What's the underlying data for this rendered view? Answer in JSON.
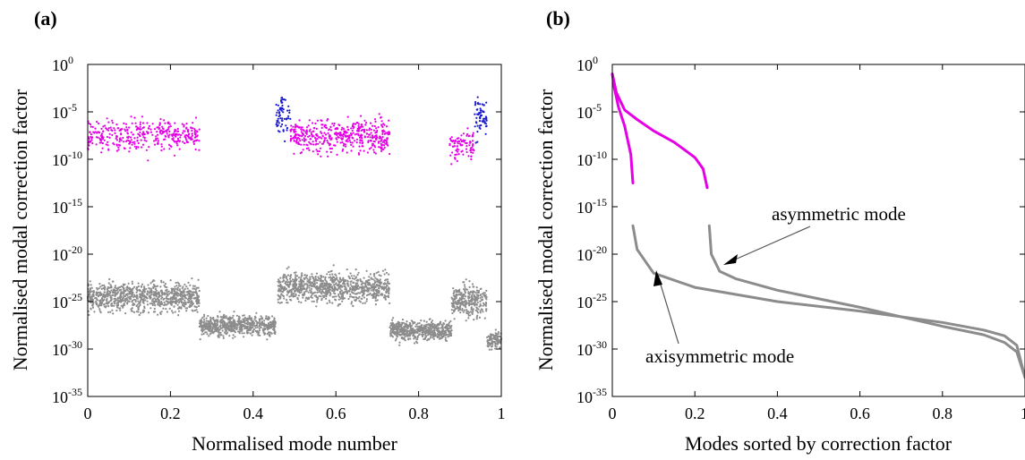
{
  "chart_data": [
    {
      "type": "scatter",
      "panel_label": "(a)",
      "xlabel": "Normalised mode number",
      "ylabel": "Normalised modal correction factor",
      "xlim": [
        0,
        1
      ],
      "ylim_log10": [
        -35,
        0
      ],
      "y_scale": "log",
      "x_ticks": [
        "0",
        "0.2",
        "0.4",
        "0.6",
        "0.8",
        "1"
      ],
      "x_tick_values": [
        0,
        0.2,
        0.4,
        0.6,
        0.8,
        1
      ],
      "y_ticks": [
        {
          "base": "10",
          "exp": "0",
          "log10": 0
        },
        {
          "base": "10",
          "exp": "-5",
          "log10": -5
        },
        {
          "base": "10",
          "exp": "-10",
          "log10": -10
        },
        {
          "base": "10",
          "exp": "-15",
          "log10": -15
        },
        {
          "base": "10",
          "exp": "-20",
          "log10": -20
        },
        {
          "base": "10",
          "exp": "-25",
          "log10": -25
        },
        {
          "base": "10",
          "exp": "-30",
          "log10": -30
        },
        {
          "base": "10",
          "exp": "-35",
          "log10": -35
        }
      ],
      "grid": false,
      "series": [
        {
          "color": "#e600e6",
          "clusters": [
            {
              "x_range": [
                0.0,
                0.27
              ],
              "log10_center": -7.5,
              "log10_spread": 2.2,
              "density": 380
            },
            {
              "x_range": [
                0.49,
                0.73
              ],
              "log10_center": -7.5,
              "log10_spread": 2.2,
              "density": 460
            },
            {
              "x_range": [
                0.875,
                0.935
              ],
              "log10_center": -8.5,
              "log10_spread": 2.0,
              "density": 90
            }
          ]
        },
        {
          "color": "#1a1acc",
          "clusters": [
            {
              "x_range": [
                0.455,
                0.49
              ],
              "log10_center": -5.0,
              "log10_spread": 2.5,
              "density": 60
            },
            {
              "x_range": [
                0.935,
                0.965
              ],
              "log10_center": -5.5,
              "log10_spread": 2.6,
              "density": 60
            }
          ]
        },
        {
          "color": "#8c8c8c",
          "clusters": [
            {
              "x_range": [
                0.0,
                0.27
              ],
              "log10_center": -24.5,
              "log10_spread": 1.9,
              "density": 900
            },
            {
              "x_range": [
                0.27,
                0.455
              ],
              "log10_center": -27.5,
              "log10_spread": 1.3,
              "density": 650
            },
            {
              "x_range": [
                0.46,
                0.73
              ],
              "log10_center": -23.5,
              "log10_spread": 1.9,
              "density": 900
            },
            {
              "x_range": [
                0.73,
                0.88
              ],
              "log10_center": -28.0,
              "log10_spread": 1.3,
              "density": 550
            },
            {
              "x_range": [
                0.88,
                0.965
              ],
              "log10_center": -25.0,
              "log10_spread": 2.0,
              "density": 300
            },
            {
              "x_range": [
                0.965,
                1.0
              ],
              "log10_center": -29.0,
              "log10_spread": 1.2,
              "density": 110
            }
          ]
        }
      ]
    },
    {
      "type": "line",
      "panel_label": "(b)",
      "xlabel": "Modes sorted by correction factor",
      "ylabel": "Normalised modal correction factor",
      "xlim": [
        0,
        1
      ],
      "ylim_log10": [
        -35,
        0
      ],
      "y_scale": "log",
      "x_ticks": [
        "0",
        "0.2",
        "0.4",
        "0.6",
        "0.8",
        "1"
      ],
      "x_tick_values": [
        0,
        0.2,
        0.4,
        0.6,
        0.8,
        1
      ],
      "y_ticks": [
        {
          "base": "10",
          "exp": "0",
          "log10": 0
        },
        {
          "base": "10",
          "exp": "-5",
          "log10": -5
        },
        {
          "base": "10",
          "exp": "-10",
          "log10": -10
        },
        {
          "base": "10",
          "exp": "-15",
          "log10": -15
        },
        {
          "base": "10",
          "exp": "-20",
          "log10": -20
        },
        {
          "base": "10",
          "exp": "-25",
          "log10": -25
        },
        {
          "base": "10",
          "exp": "-30",
          "log10": -30
        },
        {
          "base": "10",
          "exp": "-35",
          "log10": -35
        }
      ],
      "grid": false,
      "series": [
        {
          "color": "#e600e6",
          "x": [
            0.0,
            0.005,
            0.015,
            0.03,
            0.045,
            0.05
          ],
          "log10": [
            -1.0,
            -2.5,
            -4.5,
            -6.5,
            -9.5,
            -12.5
          ]
        },
        {
          "color": "#e600e6",
          "x": [
            0.0,
            0.01,
            0.03,
            0.06,
            0.1,
            0.15,
            0.2,
            0.22,
            0.23
          ],
          "log10": [
            -1.0,
            -3.0,
            -4.8,
            -5.8,
            -7.0,
            -8.2,
            -9.8,
            -11.0,
            -13.0
          ]
        },
        {
          "color": "#8c8c8c",
          "x": [
            0.05,
            0.06,
            0.1,
            0.2,
            0.4,
            0.6,
            0.8,
            0.9,
            0.95,
            0.98,
            1.0
          ],
          "log10": [
            -17.0,
            -19.5,
            -22.0,
            -23.5,
            -25.0,
            -26.0,
            -27.2,
            -28.0,
            -28.6,
            -29.6,
            -33.0
          ]
        },
        {
          "color": "#8c8c8c",
          "x": [
            0.235,
            0.24,
            0.26,
            0.3,
            0.4,
            0.6,
            0.8,
            0.9,
            0.95,
            0.98,
            1.0
          ],
          "log10": [
            -17.0,
            -20.0,
            -21.8,
            -22.6,
            -23.8,
            -25.6,
            -27.6,
            -28.5,
            -29.3,
            -30.3,
            -33.0
          ]
        }
      ],
      "annotations": [
        {
          "text": "asymmetric mode"
        },
        {
          "text": "axisymmetric mode"
        }
      ]
    }
  ]
}
